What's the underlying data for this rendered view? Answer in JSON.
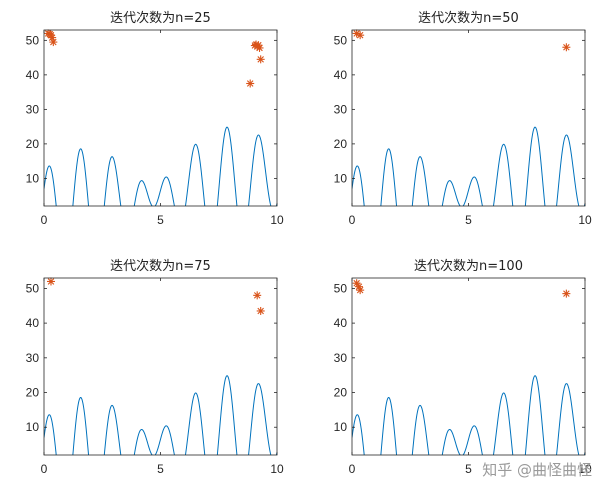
{
  "colors": {
    "curve": "#0072BD",
    "marker": "#D95319",
    "axis": "#262626",
    "watermark": "#9a9a9a"
  },
  "watermark": "知乎 @曲怪曲怪",
  "chart_data": [
    {
      "type": "line",
      "title": "迭代次数为n=25",
      "xlim": [
        0,
        10
      ],
      "ylim": [
        2,
        53
      ],
      "xticks": [
        0,
        5,
        10
      ],
      "yticks": [
        10,
        20,
        30,
        40,
        50
      ],
      "grid": false,
      "series": [
        {
          "kind": "function",
          "formula": "x + 10*sin(5*x) + 7*cos(4*x)"
        },
        {
          "kind": "scatter",
          "marker": "*",
          "x": [
            0.18,
            0.25,
            0.3,
            0.35,
            0.4,
            8.85,
            9.05,
            9.1,
            9.15,
            9.2,
            9.25,
            9.3
          ],
          "y": [
            52.0,
            51.8,
            51.5,
            50.8,
            49.5,
            37.5,
            48.5,
            48.8,
            48.2,
            48.6,
            47.8,
            44.5
          ]
        }
      ]
    },
    {
      "type": "line",
      "title": "迭代次数为n=50",
      "xlim": [
        0,
        10
      ],
      "ylim": [
        2,
        53
      ],
      "xticks": [
        0,
        5,
        10
      ],
      "yticks": [
        10,
        20,
        30,
        40,
        50
      ],
      "grid": false,
      "series": [
        {
          "kind": "function",
          "formula": "x + 10*sin(5*x) + 7*cos(4*x)"
        },
        {
          "kind": "scatter",
          "marker": "*",
          "x": [
            0.2,
            0.35,
            9.2
          ],
          "y": [
            52.0,
            51.5,
            48.0
          ]
        }
      ]
    },
    {
      "type": "line",
      "title": "迭代次数为n=75",
      "xlim": [
        0,
        10
      ],
      "ylim": [
        2,
        53
      ],
      "xticks": [
        0,
        5,
        10
      ],
      "yticks": [
        10,
        20,
        30,
        40,
        50
      ],
      "grid": false,
      "series": [
        {
          "kind": "function",
          "formula": "x + 10*sin(5*x) + 7*cos(4*x)"
        },
        {
          "kind": "scatter",
          "marker": "*",
          "x": [
            0.3,
            9.15,
            9.3
          ],
          "y": [
            52.0,
            48.0,
            43.5
          ]
        }
      ]
    },
    {
      "type": "line",
      "title": "迭代次数为n=100",
      "xlim": [
        0,
        10
      ],
      "ylim": [
        2,
        53
      ],
      "xticks": [
        0,
        5,
        10
      ],
      "yticks": [
        10,
        20,
        30,
        40,
        50
      ],
      "grid": false,
      "series": [
        {
          "kind": "function",
          "formula": "x + 10*sin(5*x) + 7*cos(4*x)"
        },
        {
          "kind": "scatter",
          "marker": "*",
          "x": [
            0.2,
            0.3,
            0.35,
            9.2
          ],
          "y": [
            51.5,
            50.5,
            49.5,
            48.5
          ]
        }
      ]
    }
  ]
}
